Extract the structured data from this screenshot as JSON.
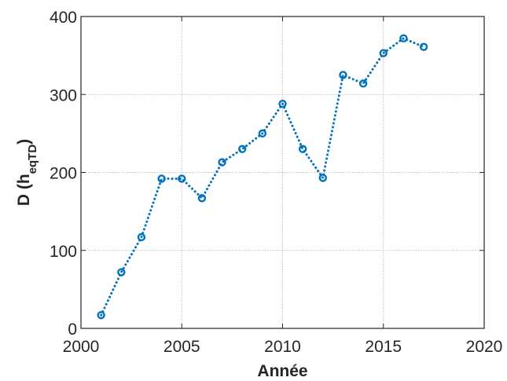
{
  "chart_data": {
    "type": "line",
    "title": "",
    "xlabel": "Année",
    "ylabel": {
      "main": "D (h",
      "subscript": "eqTD",
      "close": ")"
    },
    "xlim": [
      2000,
      2020
    ],
    "ylim": [
      0,
      400
    ],
    "xticks": [
      2000,
      2005,
      2010,
      2015,
      2020
    ],
    "yticks": [
      0,
      100,
      200,
      300,
      400
    ],
    "grid": true,
    "colors": {
      "series": "#0072BD",
      "grid": "#b0b0b0",
      "axis": "#262626"
    },
    "series": [
      {
        "line_style": "dotted",
        "marker": "circle",
        "x": [
          2001,
          2002,
          2003,
          2004,
          2005,
          2006,
          2007,
          2008,
          2009,
          2010,
          2011,
          2012,
          2013,
          2014,
          2015,
          2016,
          2017
        ],
        "y": [
          17,
          72,
          117,
          192,
          192,
          167,
          213,
          230,
          250,
          288,
          230,
          193,
          325,
          314,
          353,
          372,
          361
        ]
      }
    ]
  }
}
